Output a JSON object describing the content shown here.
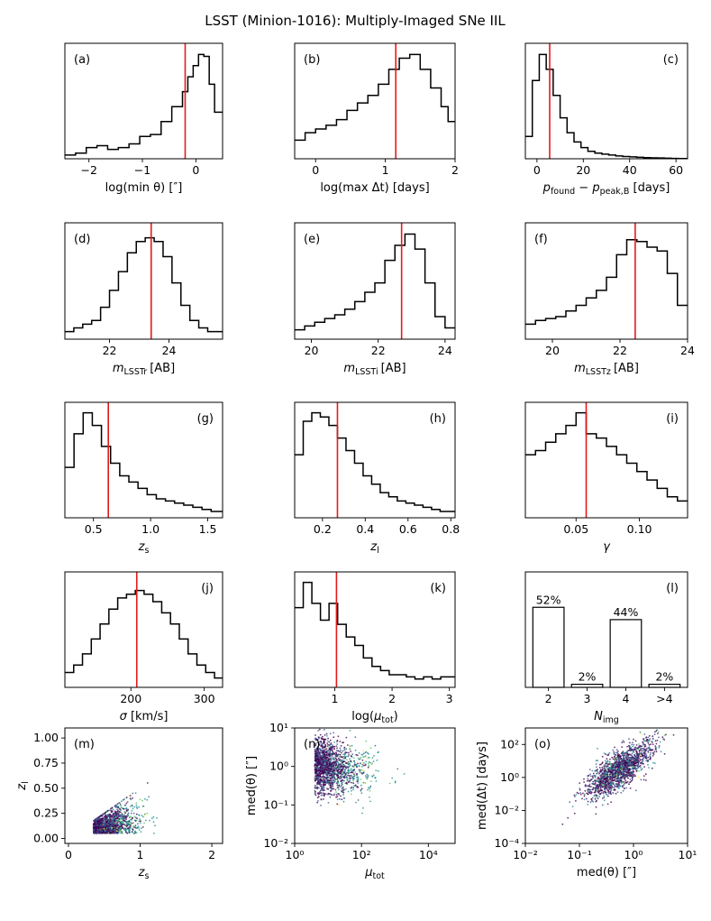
{
  "title": "LSST (Minion-1016): Multiply-Imaged SNe IIL",
  "colors": {
    "line": "#000000",
    "marker": "#e41a1c",
    "scatter": [
      "#440154",
      "#3b528b",
      "#21908d",
      "#5dc963",
      "#fde725"
    ]
  },
  "chart_data": [
    {
      "id": "a",
      "type": "bar",
      "label": "(a)",
      "xlabel": "log(min θ) [″]",
      "xlim": [
        -2.45,
        0.5
      ],
      "xticks": [
        "−2",
        "−1",
        "0"
      ],
      "xtick_values": [
        -2,
        -1,
        0
      ],
      "edges": [
        -2.45,
        -2.25,
        -2.05,
        -1.85,
        -1.65,
        -1.45,
        -1.25,
        -1.05,
        -0.85,
        -0.65,
        -0.45,
        -0.25,
        -0.15,
        -0.05,
        0.05,
        0.15,
        0.25,
        0.35,
        0.5
      ],
      "values": [
        2,
        3,
        6,
        7,
        5,
        6,
        8,
        12,
        13,
        20,
        28,
        36,
        44,
        50,
        56,
        55,
        40,
        25
      ],
      "ylim": [
        0,
        62
      ],
      "marker": -0.2,
      "label_pos": "left"
    },
    {
      "id": "b",
      "type": "bar",
      "label": "(b)",
      "xlabel": "log(max Δt) [days]",
      "xlim": [
        -0.3,
        2.0
      ],
      "xticks": [
        "0",
        "1",
        "2"
      ],
      "xtick_values": [
        0,
        1,
        2
      ],
      "edges": [
        -0.3,
        -0.15,
        0,
        0.15,
        0.3,
        0.45,
        0.6,
        0.75,
        0.9,
        1.05,
        1.2,
        1.35,
        1.5,
        1.65,
        1.8,
        1.9,
        2.0
      ],
      "values": [
        10,
        14,
        16,
        18,
        21,
        26,
        30,
        34,
        40,
        48,
        54,
        56,
        48,
        38,
        28,
        20
      ],
      "ylim": [
        0,
        62
      ],
      "marker": 1.15,
      "label_pos": "left"
    },
    {
      "id": "c",
      "type": "bar",
      "label": "(c)",
      "xlabel": "p_found − p_peak,B [days]",
      "xlim": [
        -5,
        65
      ],
      "xticks": [
        "0",
        "20",
        "40",
        "60"
      ],
      "xtick_values": [
        0,
        20,
        40,
        60
      ],
      "edges": [
        -5,
        -2,
        1,
        4,
        7,
        10,
        13,
        16,
        19,
        22,
        25,
        28,
        31,
        34,
        37,
        40,
        43,
        46,
        49,
        52,
        55,
        58,
        61,
        65
      ],
      "values": [
        12,
        42,
        56,
        48,
        34,
        22,
        14,
        9,
        6,
        4,
        3,
        2.5,
        2,
        1.5,
        1.2,
        1,
        0.8,
        0.6,
        0.5,
        0.4,
        0.3,
        0.2,
        0.1
      ],
      "ylim": [
        0,
        62
      ],
      "marker": 5.5,
      "label_pos": "right"
    },
    {
      "id": "d",
      "type": "bar",
      "label": "(d)",
      "xlabel": "m_LSSTr [AB]",
      "xlim": [
        20.5,
        25.8
      ],
      "xticks": [
        "22",
        "24"
      ],
      "xtick_values": [
        22,
        24
      ],
      "edges": [
        20.5,
        20.8,
        21.1,
        21.4,
        21.7,
        22.0,
        22.3,
        22.6,
        22.9,
        23.2,
        23.5,
        23.8,
        24.1,
        24.4,
        24.7,
        25.0,
        25.3,
        25.8
      ],
      "values": [
        4,
        6,
        8,
        10,
        17,
        26,
        36,
        46,
        52,
        54,
        52,
        44,
        30,
        18,
        10,
        6,
        4
      ],
      "ylim": [
        0,
        62
      ],
      "marker": 23.4,
      "label_pos": "left"
    },
    {
      "id": "e",
      "type": "bar",
      "label": "(e)",
      "xlabel": "m_LSSTi [AB]",
      "xlim": [
        19.5,
        24.3
      ],
      "xticks": [
        "20",
        "22",
        "24"
      ],
      "xtick_values": [
        20,
        22,
        24
      ],
      "edges": [
        19.5,
        19.8,
        20.1,
        20.4,
        20.7,
        21.0,
        21.3,
        21.6,
        21.9,
        22.2,
        22.5,
        22.8,
        23.1,
        23.4,
        23.7,
        24.0,
        24.3
      ],
      "values": [
        5,
        7,
        9,
        11,
        13,
        16,
        20,
        25,
        30,
        42,
        50,
        56,
        48,
        30,
        12,
        6
      ],
      "ylim": [
        0,
        62
      ],
      "marker": 22.7,
      "label_pos": "left"
    },
    {
      "id": "f",
      "type": "bar",
      "label": "(f)",
      "xlabel": "m_LSSTz [AB]",
      "xlim": [
        19.2,
        24.0
      ],
      "xticks": [
        "20",
        "22",
        "24"
      ],
      "xtick_values": [
        20,
        22,
        24
      ],
      "edges": [
        19.2,
        19.5,
        19.8,
        20.1,
        20.4,
        20.7,
        21.0,
        21.3,
        21.6,
        21.9,
        22.2,
        22.5,
        22.8,
        23.1,
        23.4,
        23.7,
        24.0
      ],
      "values": [
        8,
        10,
        11,
        12,
        15,
        18,
        22,
        26,
        33,
        45,
        53,
        52,
        49,
        47,
        35,
        18
      ],
      "ylim": [
        0,
        62
      ],
      "marker": 22.45,
      "label_pos": "left"
    },
    {
      "id": "g",
      "type": "bar",
      "label": "(g)",
      "xlabel": "z_s",
      "xlim": [
        0.25,
        1.63
      ],
      "xticks": [
        "0.5",
        "1.0",
        "1.5"
      ],
      "xtick_values": [
        0.5,
        1.0,
        1.5
      ],
      "edges": [
        0.25,
        0.33,
        0.41,
        0.49,
        0.57,
        0.65,
        0.73,
        0.81,
        0.89,
        0.97,
        1.05,
        1.13,
        1.21,
        1.29,
        1.37,
        1.45,
        1.53,
        1.63
      ],
      "values": [
        24,
        40,
        50,
        44,
        34,
        26,
        20,
        17,
        14,
        11,
        9,
        8,
        7,
        6,
        5,
        4,
        3
      ],
      "ylim": [
        0,
        55
      ],
      "marker": 0.63,
      "label_pos": "right"
    },
    {
      "id": "h",
      "type": "bar",
      "label": "(h)",
      "xlabel": "z_l",
      "xlim": [
        0.07,
        0.82
      ],
      "xticks": [
        "0.2",
        "0.4",
        "0.6",
        "0.8"
      ],
      "xtick_values": [
        0.2,
        0.4,
        0.6,
        0.8
      ],
      "edges": [
        0.07,
        0.11,
        0.15,
        0.19,
        0.23,
        0.27,
        0.31,
        0.35,
        0.39,
        0.43,
        0.47,
        0.51,
        0.55,
        0.59,
        0.63,
        0.67,
        0.71,
        0.75,
        0.82
      ],
      "values": [
        30,
        46,
        50,
        48,
        44,
        38,
        32,
        26,
        20,
        16,
        12,
        10,
        8,
        7,
        6,
        5,
        4,
        3
      ],
      "ylim": [
        0,
        55
      ],
      "marker": 0.27,
      "label_pos": "right"
    },
    {
      "id": "i",
      "type": "bar",
      "label": "(i)",
      "xlabel": "γ",
      "xlim": [
        0.01,
        0.138
      ],
      "xticks": [
        "0.05",
        "0.10"
      ],
      "xtick_values": [
        0.05,
        0.1
      ],
      "edges": [
        0.01,
        0.018,
        0.026,
        0.034,
        0.042,
        0.05,
        0.058,
        0.066,
        0.074,
        0.082,
        0.09,
        0.098,
        0.106,
        0.114,
        0.122,
        0.13,
        0.138
      ],
      "values": [
        30,
        32,
        36,
        40,
        44,
        50,
        40,
        38,
        34,
        30,
        26,
        22,
        18,
        14,
        10,
        8
      ],
      "ylim": [
        0,
        55
      ],
      "marker": 0.058,
      "label_pos": "right"
    },
    {
      "id": "j",
      "type": "bar",
      "label": "(j)",
      "xlabel": "σ [km/s]",
      "xlim": [
        110,
        325
      ],
      "xticks": [
        "200",
        "300"
      ],
      "xtick_values": [
        200,
        300
      ],
      "edges": [
        110,
        122,
        134,
        146,
        158,
        170,
        182,
        194,
        206,
        218,
        230,
        242,
        254,
        266,
        278,
        290,
        302,
        314,
        325
      ],
      "values": [
        8,
        12,
        18,
        26,
        34,
        42,
        48,
        50,
        52,
        50,
        46,
        40,
        34,
        26,
        18,
        12,
        8,
        5
      ],
      "ylim": [
        0,
        62
      ],
      "marker": 208,
      "label_pos": "right"
    },
    {
      "id": "k",
      "type": "bar",
      "label": "(k)",
      "xlabel": "log(μ_tot)",
      "xlim": [
        0.3,
        3.1
      ],
      "xticks": [
        "1",
        "2",
        "3"
      ],
      "xtick_values": [
        1,
        2,
        3
      ],
      "edges": [
        0.3,
        0.45,
        0.6,
        0.75,
        0.9,
        1.05,
        1.2,
        1.35,
        1.5,
        1.65,
        1.8,
        1.95,
        2.1,
        2.25,
        2.4,
        2.55,
        2.7,
        2.85,
        3.1
      ],
      "values": [
        38,
        50,
        40,
        32,
        40,
        30,
        24,
        20,
        14,
        10,
        8,
        6,
        6,
        5,
        4,
        5,
        4,
        5
      ],
      "ylim": [
        0,
        55
      ],
      "marker": 1.03,
      "label_pos": "right"
    },
    {
      "id": "l",
      "type": "bar",
      "label": "(l)",
      "xlabel": "N_img",
      "categories": [
        "2",
        "3",
        "4",
        ">4"
      ],
      "values": [
        52,
        2,
        44,
        2
      ],
      "data_labels": [
        "52%",
        "2%",
        "44%",
        "2%"
      ],
      "ylim": [
        0,
        75
      ]
    },
    {
      "id": "m",
      "type": "scatter",
      "label": "(m)",
      "xlabel": "z_s",
      "ylabel": "z_l",
      "xlim": [
        -0.05,
        2.15
      ],
      "ylim": [
        -0.05,
        1.1
      ],
      "xticks": [
        "0",
        "1",
        "2"
      ],
      "xtick_values": [
        0,
        1,
        2
      ],
      "yticks": [
        "0.00",
        "0.25",
        "0.50",
        "0.75",
        "1.00"
      ],
      "ytick_values": [
        0,
        0.25,
        0.5,
        0.75,
        1.0
      ]
    },
    {
      "id": "n",
      "type": "scatter",
      "label": "(n)",
      "xlabel": "μ_tot",
      "ylabel": "med(θ) [″]",
      "xscale": "log",
      "yscale": "log",
      "xlim": [
        0,
        4.8
      ],
      "ylim": [
        -2,
        1
      ],
      "xticks": [
        "10⁰",
        "10²",
        "10⁴"
      ],
      "xtick_values": [
        0,
        2,
        4
      ],
      "yticks": [
        "10⁻²",
        "10⁻¹",
        "10⁰",
        "10¹"
      ],
      "ytick_values": [
        -2,
        -1,
        0,
        1
      ]
    },
    {
      "id": "o",
      "type": "scatter",
      "label": "(o)",
      "xlabel": "med(θ) [″]",
      "ylabel": "med(Δt) [days]",
      "xscale": "log",
      "yscale": "log",
      "xlim": [
        -2,
        1
      ],
      "ylim": [
        -4,
        3
      ],
      "xticks": [
        "10⁻²",
        "10⁻¹",
        "10⁰",
        "10¹"
      ],
      "xtick_values": [
        -2,
        -1,
        0,
        1
      ],
      "yticks": [
        "10⁻⁴",
        "10⁻²",
        "10⁰",
        "10²"
      ],
      "ytick_values": [
        -4,
        -2,
        0,
        2
      ]
    }
  ]
}
